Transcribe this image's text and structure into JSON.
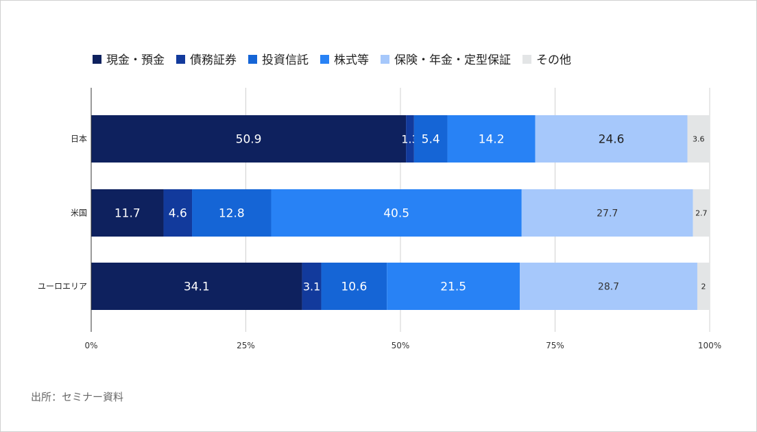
{
  "chart_data": {
    "type": "bar",
    "orientation": "horizontal",
    "stacked": true,
    "categories": [
      "日本",
      "米国",
      "ユーロエリア"
    ],
    "series": [
      {
        "name": "現金・預金",
        "color": "#0e215e",
        "values": [
          50.9,
          11.7,
          34.1
        ]
      },
      {
        "name": "債務証券",
        "color": "#123a9c",
        "values": [
          1.3,
          4.6,
          3.1
        ]
      },
      {
        "name": "投資信託",
        "color": "#1565d6",
        "values": [
          5.4,
          12.8,
          10.6
        ]
      },
      {
        "name": "株式等",
        "color": "#2882f5",
        "values": [
          14.2,
          40.5,
          21.5
        ]
      },
      {
        "name": "保険・年金・定型保証",
        "color": "#a6c8fb",
        "values": [
          24.6,
          27.7,
          28.7
        ]
      },
      {
        "name": "その他",
        "color": "#e3e5e6",
        "values": [
          3.6,
          2.7,
          2
        ]
      }
    ],
    "data_labels": [
      [
        "50.9",
        "1.3",
        "5.4",
        "14.2",
        "24.6",
        "3.6"
      ],
      [
        "11.7",
        "4.6",
        "12.8",
        "40.5",
        "27.7",
        "2.7"
      ],
      [
        "34.1",
        "3.1",
        "10.6",
        "21.5",
        "28.7",
        "2"
      ]
    ],
    "x_ticks": [
      "0%",
      "25%",
      "50%",
      "75%",
      "100%"
    ],
    "xlim": [
      0,
      100
    ],
    "grid": "vertical",
    "legend_position": "top"
  },
  "source_note": "出所：セミナー資料"
}
